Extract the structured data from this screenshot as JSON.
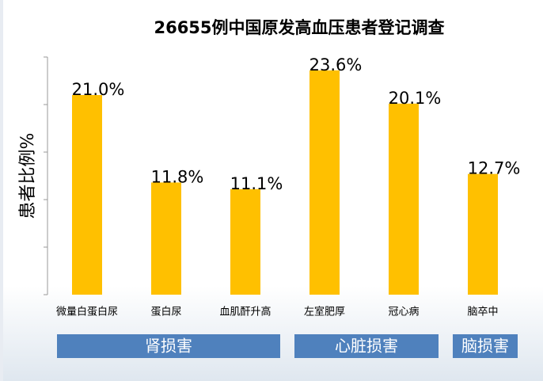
{
  "chart_data": {
    "type": "bar",
    "title": "26655例中国原发高血压患者登记调查",
    "y_label": "患者比例%",
    "color": "#ffc000",
    "group_color": "#4f81bd",
    "ylim": [
      0,
      25
    ],
    "yticks": [
      0,
      5,
      10,
      15,
      20,
      25
    ],
    "groups": [
      {
        "label": "肾损害",
        "categories": [
          "微量白蛋白尿",
          "蛋白尿",
          "血肌酐升高"
        ],
        "values": [
          21.0,
          11.8,
          11.1
        ],
        "value_labels": [
          "21.0%",
          "11.8%",
          "11.1%"
        ]
      },
      {
        "label": "心脏损害",
        "categories": [
          "左室肥厚",
          "冠心病"
        ],
        "values": [
          23.6,
          20.1
        ],
        "value_labels": [
          "23.6%",
          "20.1%"
        ]
      },
      {
        "label": "脑损害",
        "categories": [
          "脑卒中"
        ],
        "values": [
          12.7
        ],
        "value_labels": [
          "12.7%"
        ]
      }
    ]
  }
}
